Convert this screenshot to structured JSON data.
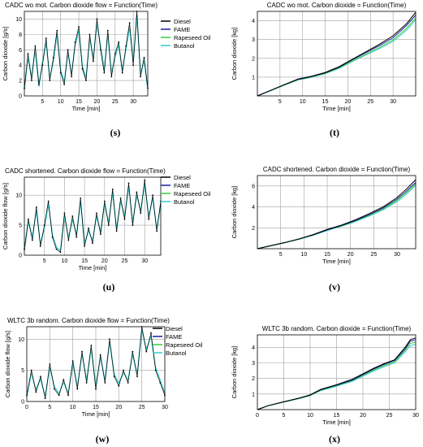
{
  "colors": {
    "diesel": "#000000",
    "fame": "#1a1aa0",
    "rapeseed": "#33cc33",
    "butanol": "#33cccc",
    "grid": "#a0a0a0",
    "frame": "#000000"
  },
  "captions": {
    "s": "(s)",
    "t": "(t)",
    "u": "(u)",
    "v": "(v)",
    "w": "(w)",
    "x": "(x)"
  },
  "chart_data": [
    {
      "id": "s",
      "type": "line",
      "title": "CADC wo mot. Carbon dioxide flow = Function(Time)",
      "xlabel": "Time [min]",
      "ylabel": "Carbon dioxide [g/s]",
      "xlim": [
        0,
        34
      ],
      "ylim": [
        0,
        11
      ],
      "xticks": [
        5,
        10,
        15,
        20,
        25,
        30
      ],
      "yticks": [
        0,
        2,
        4,
        6,
        8,
        10
      ],
      "legend": [
        "Diesel",
        "FAME",
        "Rapeseed Oil",
        "Butanol"
      ],
      "legend_position": "right",
      "grid": true,
      "series": [
        {
          "name": "Diesel",
          "x": [
            0,
            1,
            2,
            3,
            4,
            5,
            6,
            7,
            8,
            9,
            10,
            11,
            12,
            13,
            14,
            15,
            16,
            17,
            18,
            19,
            20,
            21,
            22,
            23,
            24,
            25,
            26,
            27,
            28,
            29,
            30,
            31,
            32,
            33,
            34
          ],
          "y": [
            1.0,
            5.5,
            2.0,
            6.5,
            1.5,
            4.0,
            7.5,
            2.0,
            5.0,
            8.5,
            3.0,
            1.5,
            6.0,
            2.5,
            7.0,
            9.0,
            3.5,
            2.0,
            8.0,
            4.5,
            10.0,
            6.0,
            3.0,
            8.5,
            2.5,
            5.5,
            7.0,
            3.0,
            6.5,
            9.5,
            4.0,
            11.0,
            2.5,
            5.0,
            1.0
          ]
        },
        {
          "name": "Butanol",
          "x": [
            0,
            1,
            2,
            3,
            4,
            5,
            6,
            7,
            8,
            9,
            10,
            11,
            12,
            13,
            14,
            15,
            16,
            17,
            18,
            19,
            20,
            21,
            22,
            23,
            24,
            25,
            26,
            27,
            28,
            29,
            30,
            31,
            32,
            33,
            34
          ],
          "y": [
            0.8,
            5.0,
            2.5,
            6.0,
            1.2,
            4.5,
            7.0,
            2.3,
            4.5,
            8.0,
            3.4,
            1.8,
            5.6,
            2.9,
            6.6,
            8.5,
            3.9,
            2.3,
            7.5,
            4.9,
            9.6,
            6.5,
            3.4,
            8.1,
            2.9,
            5.1,
            6.6,
            3.4,
            6.1,
            9.0,
            4.4,
            10.5,
            2.9,
            4.6,
            0.9
          ]
        }
      ]
    },
    {
      "id": "t",
      "type": "line",
      "title": "CADC wo mot. Carbon dioxide = Function(Time)",
      "xlabel": "Time [min]",
      "ylabel": "Carbon dioxide [kg]",
      "xlim": [
        0,
        35
      ],
      "ylim": [
        0,
        4.5
      ],
      "xticks": [
        5,
        10,
        15,
        20,
        25,
        30
      ],
      "yticks": [
        1,
        2,
        3,
        4
      ],
      "grid": true,
      "series": [
        {
          "name": "Diesel",
          "x": [
            0,
            3,
            6,
            9,
            12,
            15,
            18,
            21,
            24,
            27,
            30,
            33,
            35
          ],
          "y": [
            0,
            0.3,
            0.6,
            0.9,
            1.05,
            1.25,
            1.55,
            1.95,
            2.35,
            2.75,
            3.2,
            3.85,
            4.45
          ]
        },
        {
          "name": "FAME",
          "x": [
            0,
            3,
            6,
            9,
            12,
            15,
            18,
            21,
            24,
            27,
            30,
            33,
            35
          ],
          "y": [
            0,
            0.3,
            0.6,
            0.88,
            1.03,
            1.23,
            1.52,
            1.92,
            2.3,
            2.68,
            3.1,
            3.75,
            4.3
          ]
        },
        {
          "name": "Rapeseed Oil",
          "x": [
            0,
            3,
            6,
            9,
            12,
            15,
            18,
            21,
            24,
            27,
            30,
            33,
            35
          ],
          "y": [
            0,
            0.29,
            0.58,
            0.86,
            1.0,
            1.2,
            1.48,
            1.86,
            2.22,
            2.58,
            2.98,
            3.6,
            4.15
          ]
        },
        {
          "name": "Butanol",
          "x": [
            0,
            3,
            6,
            9,
            12,
            15,
            18,
            21,
            24,
            27,
            30,
            33,
            35
          ],
          "y": [
            0,
            0.28,
            0.57,
            0.85,
            0.99,
            1.18,
            1.46,
            1.83,
            2.18,
            2.52,
            2.9,
            3.5,
            4.05
          ]
        }
      ]
    },
    {
      "id": "u",
      "type": "line",
      "title": "CADC shortened. Carbon dioxide flow = Function(Time)",
      "xlabel": "Time [min]",
      "ylabel": "Carbon dioxide flow [g/s]",
      "xlim": [
        0,
        34
      ],
      "ylim": [
        0,
        13
      ],
      "xticks": [
        5,
        10,
        15,
        20,
        25,
        30
      ],
      "yticks": [
        0,
        5,
        10
      ],
      "legend": [
        "Diesel",
        "FAME",
        "Rapeseed Oil",
        "Butanol"
      ],
      "legend_position": "right",
      "grid": true,
      "series": [
        {
          "name": "Diesel",
          "x": [
            0,
            1,
            2,
            3,
            4,
            5,
            6,
            7,
            8,
            9,
            10,
            11,
            12,
            13,
            14,
            15,
            16,
            17,
            18,
            19,
            20,
            21,
            22,
            23,
            24,
            25,
            26,
            27,
            28,
            29,
            30,
            31,
            32,
            33,
            34
          ],
          "y": [
            1.0,
            6.0,
            2.5,
            8.0,
            1.5,
            5.0,
            9.0,
            3.0,
            1.0,
            0.5,
            7.0,
            2.5,
            6.5,
            3.0,
            9.5,
            1.5,
            4.5,
            2.0,
            7.0,
            3.5,
            9.0,
            5.0,
            11.0,
            4.0,
            9.5,
            6.0,
            12.0,
            5.0,
            10.5,
            7.0,
            12.5,
            6.0,
            10.0,
            4.0,
            9.0
          ]
        },
        {
          "name": "Butanol",
          "x": [
            0,
            1,
            2,
            3,
            4,
            5,
            6,
            7,
            8,
            9,
            10,
            11,
            12,
            13,
            14,
            15,
            16,
            17,
            18,
            19,
            20,
            21,
            22,
            23,
            24,
            25,
            26,
            27,
            28,
            29,
            30,
            31,
            32,
            33,
            34
          ],
          "y": [
            0.8,
            5.5,
            3.0,
            7.5,
            1.8,
            4.6,
            8.5,
            3.4,
            1.3,
            0.8,
            6.5,
            2.9,
            6.0,
            3.4,
            9.0,
            1.9,
            4.1,
            2.4,
            6.5,
            3.9,
            8.5,
            5.4,
            10.5,
            4.4,
            9.0,
            6.4,
            11.5,
            5.4,
            10.0,
            7.4,
            12.0,
            6.4,
            9.5,
            4.4,
            8.5
          ]
        }
      ]
    },
    {
      "id": "v",
      "type": "line",
      "title": "CADC shortened. Carbon dioxide = Function(Time)",
      "xlabel": "Time [min]",
      "ylabel": "Carbon dioxide [kg]",
      "xlim": [
        0,
        34
      ],
      "ylim": [
        0,
        7
      ],
      "xticks": [
        5,
        10,
        15,
        20,
        25,
        30
      ],
      "yticks": [
        2,
        4,
        6
      ],
      "grid": true,
      "series": [
        {
          "name": "Diesel",
          "x": [
            0,
            3,
            6,
            9,
            12,
            15,
            18,
            21,
            24,
            27,
            30,
            32,
            34
          ],
          "y": [
            0,
            0.3,
            0.6,
            0.95,
            1.35,
            1.85,
            2.25,
            2.75,
            3.35,
            4.0,
            4.9,
            5.7,
            6.6
          ]
        },
        {
          "name": "FAME",
          "x": [
            0,
            3,
            6,
            9,
            12,
            15,
            18,
            21,
            24,
            27,
            30,
            32,
            34
          ],
          "y": [
            0,
            0.3,
            0.6,
            0.93,
            1.32,
            1.8,
            2.2,
            2.68,
            3.25,
            3.9,
            4.75,
            5.5,
            6.35
          ]
        },
        {
          "name": "Rapeseed Oil",
          "x": [
            0,
            3,
            6,
            9,
            12,
            15,
            18,
            21,
            24,
            27,
            30,
            32,
            34
          ],
          "y": [
            0,
            0.29,
            0.58,
            0.91,
            1.3,
            1.77,
            2.16,
            2.63,
            3.18,
            3.8,
            4.62,
            5.35,
            6.2
          ]
        },
        {
          "name": "Butanol",
          "x": [
            0,
            3,
            6,
            9,
            12,
            15,
            18,
            21,
            24,
            27,
            30,
            32,
            34
          ],
          "y": [
            0,
            0.28,
            0.57,
            0.9,
            1.28,
            1.74,
            2.12,
            2.58,
            3.12,
            3.72,
            4.5,
            5.2,
            6.05
          ]
        }
      ]
    },
    {
      "id": "w",
      "type": "line",
      "title": "WLTC 3b random. Carbon dioxide flow = Function(Time)",
      "xlabel": "Time [min]",
      "ylabel": "Carbon dioxide flow [g/s]",
      "xlim": [
        0,
        30
      ],
      "ylim": [
        0,
        12
      ],
      "xticks": [
        0,
        5,
        10,
        15,
        20,
        25,
        30
      ],
      "yticks": [
        0,
        5,
        10
      ],
      "legend": [
        "Diesel",
        "FAME",
        "Rapeseed Oil",
        "Butanol"
      ],
      "legend_position": "top-right",
      "grid": true,
      "series": [
        {
          "name": "Diesel",
          "x": [
            0,
            1,
            2,
            3,
            4,
            5,
            6,
            7,
            8,
            9,
            10,
            11,
            12,
            13,
            14,
            15,
            16,
            17,
            18,
            19,
            20,
            21,
            22,
            23,
            24,
            25,
            26,
            27,
            28,
            29,
            30
          ],
          "y": [
            1.0,
            5.0,
            1.5,
            4.0,
            0.5,
            6.0,
            2.0,
            1.0,
            3.5,
            1.0,
            6.5,
            2.0,
            8.0,
            3.0,
            9.0,
            2.0,
            7.5,
            3.0,
            10.0,
            4.0,
            2.5,
            5.0,
            3.0,
            8.0,
            4.0,
            12.0,
            8.0,
            11.0,
            5.0,
            3.0,
            1.0
          ]
        },
        {
          "name": "Butanol",
          "x": [
            0,
            1,
            2,
            3,
            4,
            5,
            6,
            7,
            8,
            9,
            10,
            11,
            12,
            13,
            14,
            15,
            16,
            17,
            18,
            19,
            20,
            21,
            22,
            23,
            24,
            25,
            26,
            27,
            28,
            29,
            30
          ],
          "y": [
            0.8,
            4.6,
            1.9,
            3.6,
            0.8,
            5.6,
            2.4,
            1.3,
            3.1,
            1.3,
            6.1,
            2.4,
            7.6,
            3.4,
            8.6,
            2.4,
            7.1,
            3.4,
            9.6,
            4.4,
            2.9,
            4.6,
            3.4,
            7.6,
            4.4,
            11.5,
            8.4,
            10.5,
            5.4,
            3.4,
            1.3
          ]
        }
      ]
    },
    {
      "id": "x",
      "type": "line",
      "title": "WLTC 3b random. Carbon dioxide = Function(Time)",
      "xlabel": "Time [min]",
      "ylabel": "Carbon dioxide [kg]",
      "xlim": [
        0,
        30
      ],
      "ylim": [
        0,
        4.8
      ],
      "xticks": [
        0,
        5,
        10,
        15,
        20,
        25,
        30
      ],
      "yticks": [
        1,
        2,
        3,
        4
      ],
      "grid": true,
      "series": [
        {
          "name": "Diesel",
          "x": [
            0,
            2,
            5,
            8,
            10,
            12,
            15,
            18,
            20,
            22,
            24,
            26,
            28,
            29,
            30
          ],
          "y": [
            0,
            0.25,
            0.5,
            0.75,
            0.95,
            1.3,
            1.6,
            1.95,
            2.3,
            2.65,
            2.95,
            3.2,
            4.0,
            4.5,
            4.6
          ]
        },
        {
          "name": "FAME",
          "x": [
            0,
            2,
            5,
            8,
            10,
            12,
            15,
            18,
            20,
            22,
            24,
            26,
            28,
            29,
            30
          ],
          "y": [
            0,
            0.25,
            0.5,
            0.74,
            0.93,
            1.27,
            1.57,
            1.9,
            2.25,
            2.6,
            2.9,
            3.15,
            3.9,
            4.4,
            4.5
          ]
        },
        {
          "name": "Rapeseed Oil",
          "x": [
            0,
            2,
            5,
            8,
            10,
            12,
            15,
            18,
            20,
            22,
            24,
            26,
            28,
            29,
            30
          ],
          "y": [
            0,
            0.24,
            0.49,
            0.72,
            0.91,
            1.24,
            1.53,
            1.86,
            2.2,
            2.53,
            2.82,
            3.07,
            3.8,
            4.25,
            4.35
          ]
        },
        {
          "name": "Butanol",
          "x": [
            0,
            2,
            5,
            8,
            10,
            12,
            15,
            18,
            20,
            22,
            24,
            26,
            28,
            29,
            30
          ],
          "y": [
            0,
            0.24,
            0.48,
            0.71,
            0.9,
            1.22,
            1.5,
            1.82,
            2.15,
            2.47,
            2.75,
            3.0,
            3.7,
            4.1,
            4.2
          ]
        }
      ]
    }
  ]
}
